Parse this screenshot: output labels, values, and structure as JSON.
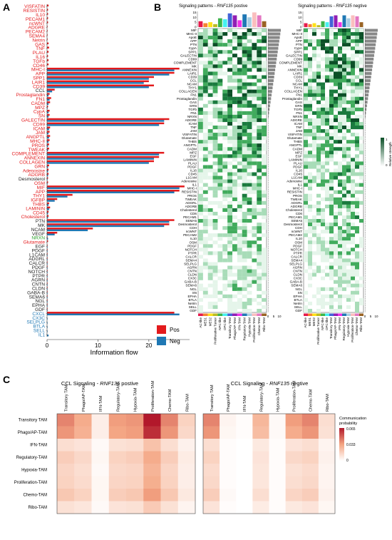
{
  "panels": {
    "a": {
      "letter": "A",
      "chart_data": {
        "type": "bar",
        "xlabel": "Information flow",
        "xlim": [
          0,
          28
        ],
        "xticks": [
          0,
          10,
          20
        ],
        "legend": {
          "placement": "right",
          "entries": [
            "Pos",
            "Neg"
          ]
        },
        "colors": {
          "pos": "#e31a1c",
          "neg": "#1f78b4"
        },
        "categories": [
          "VISFATIN",
          "RESISTIN",
          "IL10",
          "PECAM1",
          "ncWNT",
          "ADGRE",
          "PECAM2",
          "SEMA4",
          "Netrin",
          "GAS",
          "TNF",
          "PLAU",
          "IL16",
          "TGFb",
          "CD46",
          "MHC-I",
          "APP",
          "SPP1",
          "LAIR1",
          "CD39",
          "CCL",
          "Prostaglandin",
          "FN1",
          "CADM",
          "MPZ",
          "CypA",
          "SN",
          "GALECTIN",
          "CD99",
          "ICAM",
          "JAM",
          "ANGPTL",
          "MHC-II",
          "PROS",
          "TWEAK",
          "COMPLEMENT",
          "ANNEXIN",
          "COLLAGEN",
          "GRN",
          "Adenosine",
          "ADGRB",
          "Desmosterol",
          "OSM",
          "MIF",
          "APP",
          "THY1",
          "IGFBP",
          "THBS",
          "LAMININ",
          "CD45",
          "Cholesterol",
          "PTN",
          "MK",
          "NCAM",
          "VEGF",
          "NRXN",
          "Glutamate",
          "EGF",
          "PDGF",
          "L1CAM",
          "ADGRL",
          "CALCR",
          "PDGF",
          "NOTCH",
          "PTPR",
          "AGRN",
          "CNTN",
          "CLDN",
          "GABA-B",
          "SEMA6",
          "NGL",
          "EPHA",
          "GDF",
          "CXCL",
          "CX3C",
          "SELPLG",
          "BTLA",
          "SELL",
          "IL1"
        ],
        "label_colors": [
          "r",
          "r",
          "r",
          "r",
          "r",
          "r",
          "r",
          "r",
          "r",
          "r",
          "r",
          "r",
          "r",
          "r",
          "r",
          "r",
          "r",
          "r",
          "r",
          "r",
          "k",
          "r",
          "r",
          "r",
          "r",
          "r",
          "r",
          "r",
          "r",
          "r",
          "r",
          "r",
          "r",
          "r",
          "r",
          "r",
          "r",
          "r",
          "r",
          "r",
          "r",
          "k",
          "r",
          "r",
          "r",
          "r",
          "r",
          "r",
          "r",
          "r",
          "r",
          "k",
          "k",
          "k",
          "k",
          "g",
          "r",
          "k",
          "k",
          "k",
          "k",
          "k",
          "k",
          "k",
          "k",
          "k",
          "k",
          "k",
          "k",
          "k",
          "k",
          "k",
          "k",
          "b",
          "b",
          "b",
          "b",
          "b",
          "b"
        ],
        "series": [
          {
            "name": "Pos",
            "values": [
              0.3,
              0.2,
              0.2,
              0.2,
              0.2,
              0.1,
              0.1,
              0.1,
              0.1,
              0.3,
              0.4,
              0.3,
              0.2,
              0.3,
              0.3,
              26,
              25,
              21,
              20,
              21,
              1.5,
              0.5,
              0.8,
              0.6,
              0.2,
              0.5,
              0.5,
              24,
              23,
              0.6,
              0.5,
              0.6,
              0.5,
              0.4,
              0.4,
              23,
              22,
              21,
              0.4,
              0.3,
              0.3,
              0.2,
              0.2,
              27,
              26,
              5,
              2,
              0.4,
              0.6,
              0.3,
              0.3,
              25,
              24,
              9,
              2,
              0.1,
              0.2,
              0.1,
              0.1,
              0.1,
              0.1,
              0.1,
              0.1,
              0.1,
              0.1,
              0.1,
              0.1,
              0.1,
              0.1,
              0.1,
              0.1,
              0.1,
              0.1,
              25,
              0,
              0,
              0,
              0,
              0
            ]
          },
          {
            "name": "Neg",
            "values": [
              0,
              0,
              0,
              0,
              0,
              0,
              0,
              0,
              0,
              0,
              0,
              0,
              0,
              0,
              0,
              25,
              24,
              20,
              19,
              20,
              1,
              0.3,
              0.5,
              0.3,
              0.1,
              0.3,
              0.3,
              23,
              22,
              0.4,
              0.3,
              0.4,
              0.3,
              0.2,
              0.2,
              22,
              21,
              20,
              0.2,
              0.2,
              0.2,
              0.1,
              0.1,
              26,
              25,
              4,
              1.5,
              0.3,
              0.4,
              0.2,
              0.2,
              24,
              23,
              8,
              1.5,
              0.2,
              0,
              0.1,
              0.1,
              0.1,
              0.1,
              0.1,
              0.1,
              0.1,
              0.1,
              0.1,
              0.1,
              0.1,
              0.1,
              0.1,
              0.1,
              0.1,
              0.1,
              26,
              0.1,
              0.1,
              0.1,
              0.1,
              0.3
            ]
          }
        ]
      }
    },
    "b": {
      "letter": "B",
      "left_title_prefix": "Signaling patterns - ",
      "left_title_gene": "RNF135",
      "left_title_suffix": " postive",
      "right_title_prefix": "Signaling patterns - ",
      "right_title_gene": "RNF135",
      "right_title_suffix": " negtive",
      "legend_label": "Relative strength",
      "legend_ticks": [
        "0",
        "1"
      ],
      "top_ticks": [
        "15",
        "10",
        "5",
        "0"
      ],
      "right_ticks": [
        "0",
        "5",
        "10"
      ],
      "colors": {
        "high": "#0b5d2e",
        "mid": "#41ab5d",
        "low": "#d7efe0"
      },
      "rows": [
        "MIF",
        "MHC-II",
        "ApoE",
        "APP",
        "PTN",
        "CypA",
        "SPP1",
        "GALECTIN",
        "CD99",
        "COMPLEMENT",
        "MK",
        "ANNEXIN",
        "LAIR1",
        "CD39",
        "CCL",
        "NCAM",
        "THY1",
        "COLLAGEN",
        "FN1",
        "Prostaglandin",
        "GAS",
        "GRN",
        "TGFb",
        "FN1",
        "NRXN",
        "ADGRE",
        "ICAM",
        "TNF",
        "JAM",
        "VISFATIN",
        "Glutamate",
        "THBS",
        "ANGPTL",
        "CADM",
        "MPZ",
        "EGF",
        "LAMININ",
        "PLAU",
        "PDGF",
        "IL16",
        "CD45",
        "L1CAM",
        "Adenosine",
        "IL1",
        "MHC-I",
        "RESISTIN",
        "PROS",
        "TWEAK",
        "ADGRL",
        "ADGRB",
        "Cholesterol",
        "CD6",
        "PECAM1",
        "SEMA5",
        "Desmosterol",
        "CDH",
        "ncWNT",
        "PECAM2",
        "IL10",
        "OSM",
        "PDGF",
        "NOTCH",
        "PTPR",
        "CALCR",
        "SEMA4",
        "SELPLG",
        "AGRN",
        "CNTN",
        "CLDN",
        "CX3C",
        "GABA-B",
        "SEMA6",
        "NGL",
        "SN",
        "EPHA",
        "BTLA",
        "Netrin",
        "SELL",
        "GDF"
      ],
      "cols": [
        "AC-like",
        "MES1",
        "MES2",
        "Proliferative Tumor",
        "NPC-like",
        "OPC-like",
        "Transitory TAM",
        "Phago/AP-TAM",
        "IFN-TAM",
        "Regulatory-TAM",
        "Hypoxia-TAM",
        "Proliferation-TAM",
        "Chemo-TAM",
        "Ribo-TAM"
      ],
      "col_colors": [
        "#e6194b",
        "#f58231",
        "#ffe119",
        "#bcbd22",
        "#3cb44b",
        "#46f0f0",
        "#4363d8",
        "#911eb4",
        "#f032e6",
        "#1f78b4",
        "#a6cee3",
        "#fabebe",
        "#e377c2",
        "#9a6324"
      ],
      "left_top_bars": [
        6,
        4,
        5,
        3,
        9,
        8,
        14,
        12,
        7,
        13,
        10,
        15,
        12,
        6
      ],
      "right_top_bars": [
        4,
        3,
        4,
        2,
        6,
        5,
        11,
        12,
        5,
        12,
        9,
        12,
        11,
        5
      ]
    },
    "c": {
      "letter": "C",
      "left_title_prefix": "CCL Signaling - ",
      "left_title_gene": "RNF135",
      "left_title_suffix": " postive",
      "right_title_prefix": "CCL Signaling - ",
      "right_title_gene": "RNF135",
      "right_title_suffix": " negtive",
      "legend_title_1": "Communication",
      "legend_title_2": "probability",
      "legend_ticks": [
        "0.065",
        "0.033",
        "0"
      ],
      "colors": {
        "low": "#ffffff",
        "mid": "#f4a582",
        "high": "#b2182b"
      },
      "chart_data": {
        "type": "heatmap",
        "rows": [
          "Transitory TAM",
          "Phago/AP-TAM",
          "IFN-TAM",
          "Regulatory-TAM",
          "Hypoxia-TAM",
          "Proliferation-TAM",
          "Chemo-TAM",
          "Ribo-TAM"
        ],
        "cols": [
          "Transitory TAM",
          "Phago/AP-TAM",
          "IFN-TAM",
          "Regulatory-TAM",
          "Hypoxia-TAM",
          "Proliferation-TAM",
          "Chemo-TAM",
          "Ribo-TAM"
        ],
        "positive": [
          [
            0.04,
            0.03,
            0.006,
            0.034,
            0.036,
            0.065,
            0.04,
            0.016
          ],
          [
            0.036,
            0.028,
            0.006,
            0.032,
            0.034,
            0.06,
            0.036,
            0.014
          ],
          [
            0.012,
            0.01,
            0.002,
            0.011,
            0.012,
            0.022,
            0.012,
            0.005
          ],
          [
            0.018,
            0.014,
            0.003,
            0.016,
            0.018,
            0.03,
            0.018,
            0.007
          ],
          [
            0.015,
            0.012,
            0.002,
            0.014,
            0.015,
            0.027,
            0.015,
            0.006
          ],
          [
            0.016,
            0.013,
            0.003,
            0.015,
            0.016,
            0.029,
            0.016,
            0.006
          ],
          [
            0.02,
            0.016,
            0.003,
            0.018,
            0.02,
            0.034,
            0.02,
            0.008
          ],
          [
            0.011,
            0.009,
            0.002,
            0.01,
            0.011,
            0.019,
            0.011,
            0.004
          ]
        ],
        "negative": [
          [
            0.04,
            0.004,
            0.001,
            0.026,
            0.002,
            0.034,
            0.04,
            0.012
          ],
          [
            0.036,
            0.003,
            0.001,
            0.024,
            0.002,
            0.03,
            0.036,
            0.011
          ],
          [
            0.012,
            0.001,
            0.0,
            0.008,
            0.001,
            0.01,
            0.012,
            0.004
          ],
          [
            0.016,
            0.001,
            0.0,
            0.01,
            0.001,
            0.014,
            0.016,
            0.005
          ],
          [
            0.013,
            0.001,
            0.0,
            0.009,
            0.001,
            0.011,
            0.013,
            0.004
          ],
          [
            0.014,
            0.001,
            0.0,
            0.009,
            0.001,
            0.012,
            0.014,
            0.004
          ],
          [
            0.018,
            0.002,
            0.0,
            0.012,
            0.001,
            0.015,
            0.018,
            0.005
          ],
          [
            0.01,
            0.001,
            0.0,
            0.007,
            0.001,
            0.008,
            0.01,
            0.003
          ]
        ],
        "vmin": 0,
        "vmax": 0.065
      }
    }
  }
}
